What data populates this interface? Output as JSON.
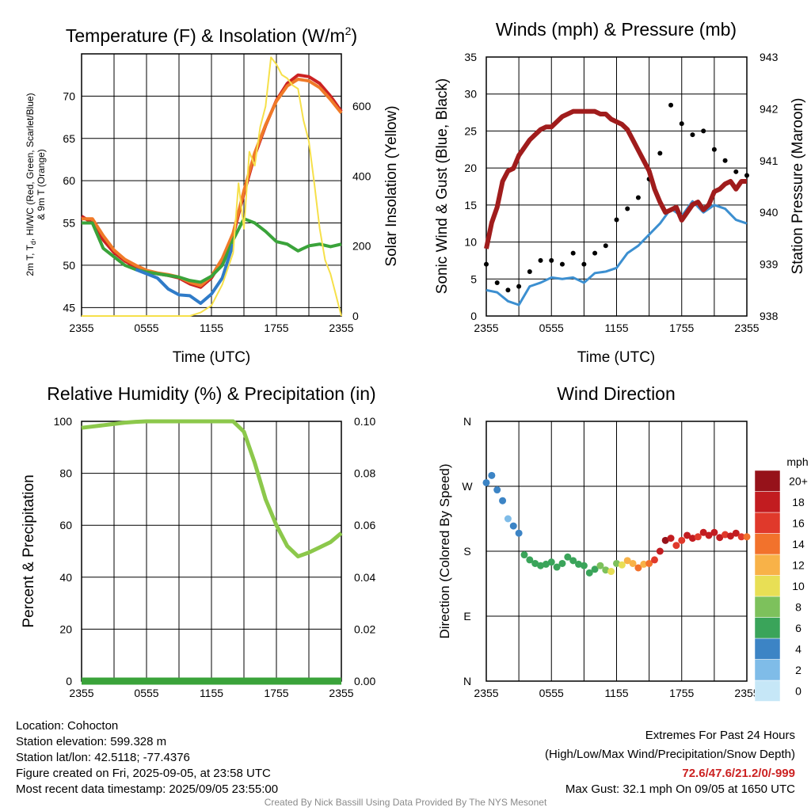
{
  "colors": {
    "temp": "#cc2222",
    "dewpoint_green": "#3aa33a",
    "hiwc": "#cc2222",
    "temp9m": "#f07a28",
    "heat_alt": "#2f7bc8",
    "insolation": "#f6e04a",
    "wind": "#3c8fd0",
    "gust": "#000000",
    "pressure": "#a01c1c",
    "rh": "#8cc84b",
    "precip": "#3aa33a"
  },
  "panels": {
    "temp": {
      "title": "Temperature (F) & Insolation (W/m",
      "title_sup": "2",
      "title_close": ")",
      "ylabel_line1": "2m T, T",
      "ylabel_sub": "d",
      "ylabel_line1b": ", HI/WC (Red, Green, Scarlet/Blue)",
      "ylabel_line2": "& 9m T (Orange)",
      "ylabel_right": "Solar Insolation (Yellow)",
      "xlabel": "Time (UTC)"
    },
    "wind": {
      "title": "Winds (mph) & Pressure (mb)",
      "ylabel_left": "Sonic Wind & Gust (Blue, Black)",
      "ylabel_right": "Station Pressure (Maroon)",
      "xlabel": "Time (UTC)"
    },
    "rh": {
      "title": "Relative Humidity (%) & Precipitation (in)",
      "ylabel_left": "Percent & Precipitation"
    },
    "dir": {
      "title": "Wind Direction",
      "ylabel_left": "Direction (Colored By Speed)",
      "colorbar_title": "mph"
    }
  },
  "chart_data": [
    {
      "type": "line",
      "title": "Temperature (F) & Insolation (W/m2)",
      "xlabel": "Time (UTC)",
      "ylabel": "2m T, Td, HI/WC (Red, Green, Scarlet/Blue) & 9m T (Orange)",
      "ylabel_right": "Solar Insolation (Yellow)",
      "x_ticks": [
        "2355",
        "0555",
        "1155",
        "1755",
        "2355"
      ],
      "x_hours": [
        0,
        3,
        6,
        9,
        12,
        15,
        18,
        21,
        24
      ],
      "ylim": [
        44,
        75
      ],
      "y_ticks": [
        45,
        50,
        55,
        60,
        65,
        70
      ],
      "ylim_right": [
        0,
        750
      ],
      "y_ticks_right": [
        0,
        200,
        400,
        600
      ],
      "series": [
        {
          "name": "2m T",
          "color": "#cc2222",
          "x": [
            0,
            1,
            2,
            3,
            4,
            5,
            6,
            7,
            8,
            9,
            10,
            11,
            12,
            13,
            14,
            15,
            16,
            17,
            18,
            19,
            20,
            21,
            22,
            23,
            24
          ],
          "values": [
            55.8,
            55,
            53,
            51.5,
            50.5,
            49.8,
            49.2,
            49,
            48.8,
            48.5,
            47.8,
            47.4,
            48.5,
            50.5,
            53.5,
            58.5,
            63,
            66.5,
            69.5,
            71.5,
            72.5,
            72.3,
            71.5,
            70,
            68.2
          ]
        },
        {
          "name": "9m T",
          "color": "#f07a28",
          "x": [
            0,
            1,
            2,
            3,
            4,
            5,
            6,
            7,
            8,
            9,
            10,
            11,
            12,
            13,
            14,
            15,
            16,
            17,
            18,
            19,
            20,
            21,
            22,
            23,
            24
          ],
          "values": [
            55.5,
            55.5,
            53.5,
            51.8,
            50.7,
            50,
            49.4,
            49.1,
            48.9,
            48.6,
            48,
            47.6,
            48.7,
            50.8,
            53.8,
            58.8,
            63.3,
            66.6,
            69.4,
            71.2,
            72,
            71.8,
            71,
            69.6,
            68
          ]
        },
        {
          "name": "Td",
          "color": "#3aa33a",
          "x": [
            0,
            1,
            2,
            3,
            4,
            5,
            6,
            7,
            8,
            9,
            10,
            11,
            12,
            13,
            14,
            15,
            16,
            17,
            18,
            19,
            20,
            21,
            22,
            23,
            24
          ],
          "values": [
            55,
            55,
            52,
            51,
            50,
            49.5,
            49.2,
            49,
            48.8,
            48.6,
            48.2,
            48,
            48.7,
            50,
            53,
            55.5,
            55,
            54,
            52.8,
            52.5,
            51.7,
            52.3,
            52.5,
            52.2,
            52.5
          ]
        },
        {
          "name": "HI/WC",
          "color": "#2f7bc8",
          "x": [
            5,
            6,
            7,
            8,
            9,
            10,
            11,
            12,
            13,
            14
          ],
          "values": [
            49.5,
            49,
            48.5,
            47.2,
            46.5,
            46.4,
            45.5,
            46.6,
            48.5,
            52.5
          ]
        },
        {
          "name": "Insolation",
          "color": "#f6e04a",
          "axis": "right",
          "x": [
            0,
            2,
            4,
            6,
            8,
            10,
            11,
            12,
            13,
            14,
            14.5,
            15,
            15.5,
            16,
            16.5,
            17,
            17.5,
            18,
            18.5,
            19,
            19.5,
            20,
            20.5,
            21,
            21.5,
            22,
            22.5,
            23,
            23.5,
            24
          ],
          "values": [
            0,
            0,
            0,
            0,
            0,
            0,
            10,
            30,
            90,
            180,
            380,
            250,
            470,
            430,
            540,
            600,
            740,
            720,
            690,
            680,
            660,
            650,
            560,
            500,
            380,
            250,
            160,
            120,
            60,
            0
          ]
        }
      ]
    },
    {
      "type": "line",
      "title": "Winds (mph) & Pressure (mb)",
      "xlabel": "Time (UTC)",
      "ylabel": "Sonic Wind & Gust (Blue, Black)",
      "ylabel_right": "Station Pressure (Maroon)",
      "x_ticks": [
        "2355",
        "0555",
        "1155",
        "1755",
        "2355"
      ],
      "ylim": [
        0,
        35
      ],
      "y_ticks": [
        0,
        5,
        10,
        15,
        20,
        25,
        30,
        35
      ],
      "ylim_right": [
        938,
        943
      ],
      "y_ticks_right": [
        938,
        939,
        940,
        941,
        942,
        943
      ],
      "series": [
        {
          "name": "Sonic Wind",
          "color": "#3c8fd0",
          "x": [
            0,
            1,
            2,
            3,
            4,
            5,
            6,
            7,
            8,
            9,
            10,
            11,
            12,
            13,
            14,
            15,
            16,
            17,
            18,
            19,
            20,
            21,
            22,
            23,
            24
          ],
          "values": [
            3.5,
            3.2,
            2,
            1.5,
            4,
            4.5,
            5.2,
            5,
            5.2,
            4.5,
            5.8,
            6,
            6.5,
            8.5,
            9.5,
            11,
            12.5,
            14.5,
            13.5,
            15.5,
            14,
            15,
            14.5,
            13,
            12.5
          ]
        },
        {
          "name": "Gust",
          "color": "#000000",
          "type": "scatter",
          "x": [
            0,
            1,
            2,
            3,
            4,
            5,
            6,
            7,
            8,
            9,
            10,
            11,
            12,
            13,
            14,
            15,
            16,
            17,
            18,
            19,
            20,
            21,
            22,
            23,
            24
          ],
          "values": [
            7,
            4.5,
            3.5,
            4,
            6,
            7.5,
            7.5,
            7,
            8.5,
            7,
            8.5,
            9.5,
            13,
            14.5,
            16,
            18.5,
            22,
            28.5,
            26,
            24.5,
            25,
            22.5,
            21,
            19.5,
            19
          ]
        },
        {
          "name": "Station Pressure",
          "color": "#a01c1c",
          "axis": "right",
          "x": [
            0,
            0.5,
            1,
            1.5,
            2,
            2.5,
            3,
            3.5,
            4,
            4.5,
            5,
            5.5,
            6,
            6.5,
            7,
            7.5,
            8,
            8.5,
            9,
            9.5,
            10,
            10.5,
            11,
            11.5,
            12,
            12.5,
            13,
            13.5,
            14,
            14.5,
            15,
            15.5,
            16,
            16.5,
            17,
            17.5,
            18,
            18.5,
            19,
            19.5,
            20,
            20.5,
            21,
            21.5,
            22,
            22.5,
            23,
            23.5,
            24
          ],
          "values": [
            939.3,
            939.8,
            940.1,
            940.6,
            940.8,
            940.85,
            941.1,
            941.25,
            941.4,
            941.5,
            941.6,
            941.65,
            941.65,
            941.75,
            941.85,
            941.9,
            941.95,
            941.95,
            941.95,
            941.95,
            941.95,
            941.9,
            941.9,
            941.8,
            941.75,
            941.7,
            941.6,
            941.4,
            941.2,
            941.0,
            940.8,
            940.45,
            940.2,
            940.0,
            940.05,
            940.1,
            939.85,
            940.0,
            940.15,
            940.2,
            940.05,
            940.15,
            940.4,
            940.45,
            940.55,
            940.6,
            940.45,
            940.6,
            940.6
          ]
        }
      ]
    },
    {
      "type": "line",
      "title": "Relative Humidity (%) & Precipitation (in)",
      "ylabel": "Percent & Precipitation",
      "x_ticks": [
        "2355",
        "0555",
        "1155",
        "1755",
        "2355"
      ],
      "ylim": [
        0,
        100
      ],
      "y_ticks": [
        0,
        20,
        40,
        60,
        80,
        100
      ],
      "ylim_right": [
        0,
        0.1
      ],
      "y_ticks_right": [
        "0.00",
        "0.02",
        "0.04",
        "0.06",
        "0.08",
        "0.10"
      ],
      "series": [
        {
          "name": "RH",
          "color": "#8cc84b",
          "x": [
            0,
            1,
            2,
            3,
            4,
            5,
            6,
            7,
            8,
            9,
            10,
            11,
            12,
            13,
            14,
            15,
            16,
            17,
            18,
            19,
            20,
            21,
            22,
            23,
            24
          ],
          "values": [
            97.5,
            98,
            98.5,
            99,
            99.5,
            99.8,
            100,
            100,
            100,
            100,
            100,
            100,
            100,
            100,
            100,
            96,
            84,
            70,
            60,
            52,
            48,
            49.5,
            51.5,
            53.5,
            57
          ]
        },
        {
          "name": "Precipitation",
          "color": "#3aa33a",
          "axis": "right",
          "x": [
            0,
            24
          ],
          "values": [
            0,
            0
          ]
        }
      ]
    },
    {
      "type": "scatter",
      "title": "Wind Direction",
      "ylabel": "Direction (Colored By Speed)",
      "x_ticks": [
        "2355",
        "0555",
        "1155",
        "1755",
        "2355"
      ],
      "y_ticks": [
        "N",
        "E",
        "S",
        "W",
        "N"
      ],
      "ylim": [
        0,
        360
      ],
      "colorbar": {
        "title": "mph",
        "labels": [
          "0",
          "2",
          "4",
          "6",
          "8",
          "10",
          "12",
          "14",
          "16",
          "18",
          "20+"
        ],
        "colors": [
          "#c6e7f7",
          "#7fbce8",
          "#3c84c5",
          "#3aa45a",
          "#7dc15c",
          "#e8df55",
          "#f8b248",
          "#f2722c",
          "#e0392b",
          "#c21c20",
          "#96121a"
        ]
      },
      "series": [
        {
          "name": "Direction",
          "x": [
            0,
            0.5,
            1,
            1.5,
            2,
            2.5,
            3,
            3.5,
            4,
            4.5,
            5,
            5.5,
            6,
            6.5,
            7,
            7.5,
            8,
            8.5,
            9,
            9.5,
            10,
            10.5,
            11,
            11.5,
            12,
            12.5,
            13,
            13.5,
            14,
            14.5,
            15,
            15.5,
            16,
            16.5,
            17,
            17.5,
            18,
            18.5,
            19,
            19.5,
            20,
            20.5,
            21,
            21.5,
            22,
            22.5,
            23,
            23.5,
            24
          ],
          "values": [
            275,
            285,
            265,
            250,
            225,
            215,
            205,
            175,
            168,
            163,
            160,
            162,
            165,
            158,
            163,
            172,
            167,
            162,
            160,
            150,
            155,
            160,
            154,
            152,
            163,
            161,
            167,
            163,
            157,
            162,
            163,
            168,
            180,
            195,
            198,
            188,
            195,
            202,
            198,
            200,
            206,
            202,
            206,
            199,
            203,
            201,
            205,
            200,
            200
          ],
          "speeds": [
            2,
            2,
            2,
            2,
            1.5,
            2,
            3,
            4,
            4,
            4,
            4,
            4,
            4,
            4,
            4,
            4,
            4,
            4,
            4,
            4,
            5,
            6,
            7,
            8,
            7,
            9,
            10,
            11,
            12,
            11,
            13,
            14,
            16,
            18,
            16,
            14,
            15,
            16,
            17,
            15,
            16,
            16,
            17,
            16,
            15,
            16,
            16,
            14,
            12
          ]
        }
      ]
    }
  ],
  "footer": {
    "location": "Location: Cohocton",
    "elevation": "Station elevation: 599.328 m",
    "latlon": "Station lat/lon: 42.5118; -77.4376",
    "created": "Figure created on Fri, 2025-09-05, at 23:58 UTC",
    "recent": "Most recent data timestamp: 2025/09/05 23:55:00",
    "extremes_title": "Extremes For Past 24 Hours",
    "extremes_legend": "(High/Low/Max Wind/Precipitation/Snow Depth)",
    "extremes_values": "72.6/47.6/21.2/0/-999",
    "max_gust": "Max Gust: 32.1 mph On 09/05 at 1650 UTC",
    "credit": "Created By Nick Bassill Using Data Provided By The NYS Mesonet"
  }
}
